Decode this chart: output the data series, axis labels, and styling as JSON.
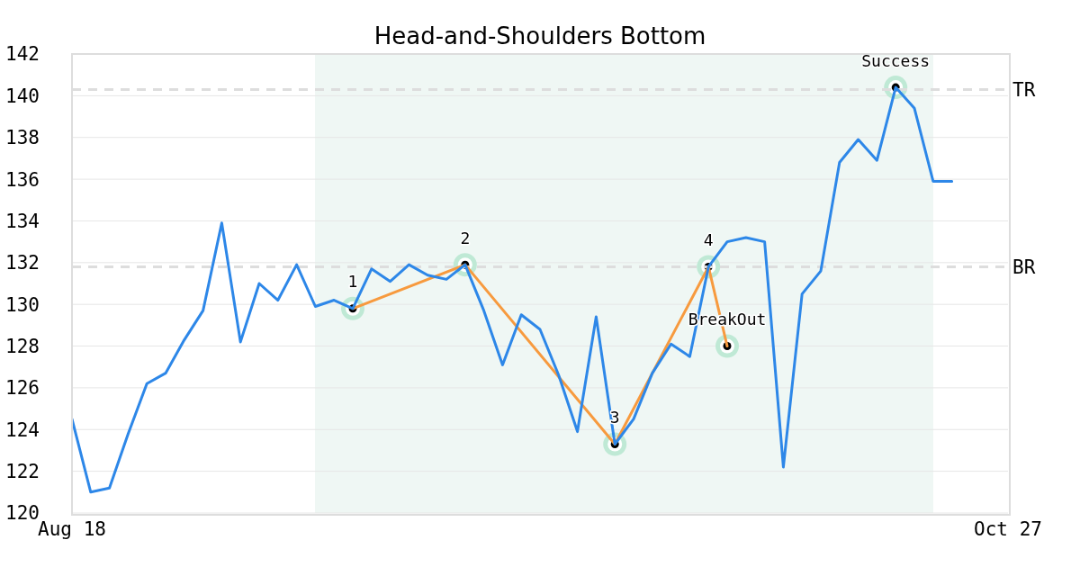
{
  "chart_data": {
    "type": "line",
    "title": "Head-and-Shoulders Bottom",
    "categories": [
      "Aug 18",
      null,
      null,
      null,
      null,
      null,
      null,
      null,
      null,
      null,
      null,
      null,
      null,
      null,
      null,
      null,
      null,
      null,
      null,
      null,
      null,
      null,
      null,
      null,
      null,
      null,
      null,
      null,
      null,
      null,
      null,
      null,
      null,
      null,
      null,
      null,
      null,
      null,
      null,
      null,
      null,
      null,
      null,
      null,
      null,
      null,
      null,
      null,
      null,
      null,
      "Oct 27"
    ],
    "series": [
      {
        "color": "#2d87e8",
        "values": [
          124.5,
          121.0,
          121.2,
          123.8,
          126.2,
          126.7,
          128.3,
          129.7,
          133.9,
          128.2,
          131.0,
          130.2,
          131.9,
          129.9,
          130.2,
          129.8,
          131.7,
          131.1,
          131.9,
          131.4,
          131.2,
          131.9,
          129.7,
          127.1,
          129.5,
          128.8,
          126.6,
          123.9,
          129.4,
          123.3,
          124.5,
          126.7,
          128.1,
          127.5,
          131.8,
          133.0,
          133.2,
          133.0,
          122.2,
          130.5,
          131.6,
          136.8,
          137.9,
          136.9,
          140.4,
          139.4,
          135.9,
          135.9,
          null,
          null,
          null
        ]
      },
      {
        "color": "#f79a3e",
        "marker": "circle",
        "values": [
          null,
          null,
          null,
          null,
          null,
          null,
          null,
          null,
          null,
          null,
          null,
          null,
          null,
          null,
          null,
          129.8,
          null,
          null,
          null,
          null,
          null,
          131.9,
          null,
          null,
          null,
          null,
          null,
          null,
          null,
          123.3,
          null,
          null,
          null,
          null,
          131.8,
          128.0,
          null,
          null,
          null,
          null,
          null,
          null,
          null,
          null,
          null,
          null,
          null,
          null,
          null,
          null,
          null
        ]
      },
      {
        "type": "scatter",
        "color": "#000000",
        "values": [
          null,
          null,
          null,
          null,
          null,
          null,
          null,
          null,
          null,
          null,
          null,
          null,
          null,
          null,
          null,
          null,
          null,
          null,
          null,
          null,
          null,
          null,
          null,
          null,
          null,
          null,
          null,
          null,
          null,
          null,
          null,
          null,
          null,
          null,
          null,
          null,
          null,
          null,
          null,
          null,
          null,
          null,
          null,
          null,
          140.4,
          null,
          null,
          null,
          null,
          null,
          null
        ]
      }
    ],
    "annotations": [
      {
        "text": "1",
        "y": 129.8
      },
      {
        "text": "2",
        "y": 131.9
      },
      {
        "text": "3",
        "y": 123.3
      },
      {
        "text": "4",
        "y": 131.8
      },
      {
        "text": "BreakOut",
        "y": 128.0
      },
      {
        "text": "Success",
        "y": 140.4
      }
    ],
    "ref_lines": [
      {
        "axis": "y",
        "value": 140.3,
        "label": "TR",
        "color": "#dddddd",
        "line_style": "dashed"
      },
      {
        "axis": "y",
        "value": 131.8,
        "label": "BR",
        "color": "#dddddd",
        "line_style": "dashed"
      }
    ],
    "ylim": [
      120,
      142
    ],
    "yticks": [
      120,
      122,
      124,
      126,
      128,
      130,
      132,
      134,
      136,
      138,
      140,
      142
    ],
    "grid": "y",
    "line_style": "solid"
  }
}
